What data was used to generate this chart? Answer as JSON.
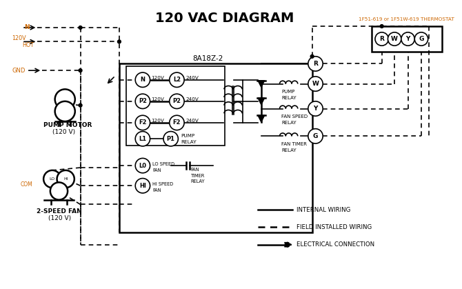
{
  "title": "120 VAC DIAGRAM",
  "title_fontsize": 14,
  "title_fontweight": "bold",
  "bg_color": "#ffffff",
  "line_color": "#000000",
  "orange_color": "#cc6600",
  "thermostat_label": "1F51-619 or 1F51W-619 THERMOSTAT",
  "control_box_label": "8A18Z-2",
  "left_labels": [
    "N",
    "P2",
    "F2"
  ],
  "right_labels": [
    "L2",
    "P2",
    "F2"
  ],
  "volts_left": [
    "120V",
    "120V",
    "120V"
  ],
  "volts_right": [
    "240V",
    "240V",
    "240V"
  ],
  "thermostat_circles": [
    "R",
    "W",
    "Y",
    "G"
  ],
  "relay_labels": [
    [
      "PUMP",
      "RELAY"
    ],
    [
      "FAN SPEED",
      "RELAY"
    ],
    [
      "FAN TIMER",
      "RELAY"
    ]
  ],
  "relay_circle_labels": [
    "W",
    "Y",
    "G"
  ],
  "legend_items": [
    {
      "label": "INTERNAL WIRING",
      "style": "solid"
    },
    {
      "label": "FIELD INSTALLED WIRING",
      "style": "dashed"
    },
    {
      "label": "ELECTRICAL CONNECTION",
      "style": "dot_arrow"
    }
  ]
}
